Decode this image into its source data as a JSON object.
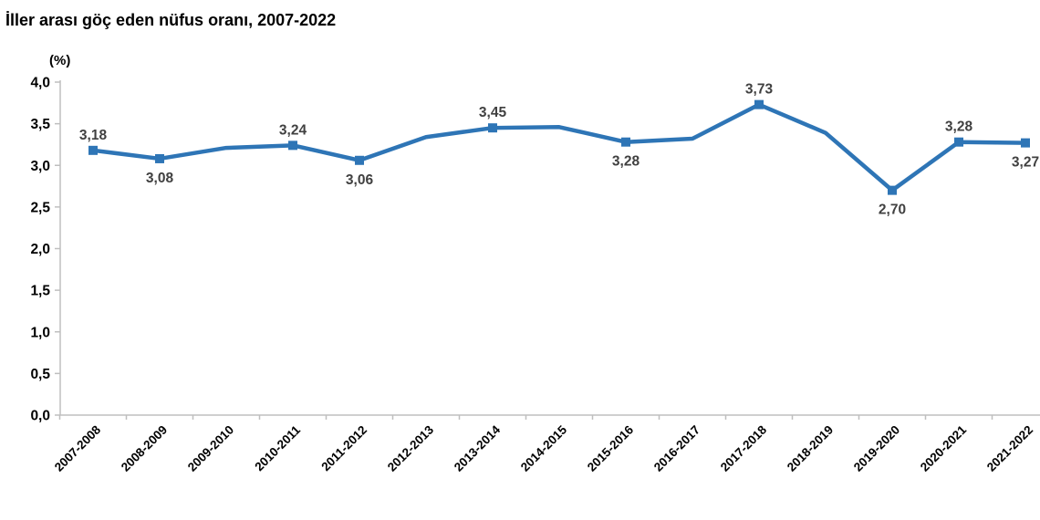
{
  "title": "İller arası göç eden nüfus oranı, 2007-2022",
  "colors": {
    "line": "#2E75B6",
    "marker": "#2E75B6",
    "data_label": "#404040",
    "axis": "#BFBFBF",
    "tick_label": "#000000",
    "title": "#000000"
  },
  "chart_data": {
    "type": "line",
    "title": "İller arası göç eden nüfus oranı, 2007-2022",
    "xlabel": "",
    "ylabel": "(%)",
    "ylim": [
      0,
      4
    ],
    "grid": false,
    "legend": null,
    "categories": [
      "2007-2008",
      "2008-2009",
      "2009-2010",
      "2010-2011",
      "2011-2012",
      "2012-2013",
      "2013-2014",
      "2014-2015",
      "2015-2016",
      "2016-2017",
      "2017-2018",
      "2018-2019",
      "2019-2020",
      "2020-2021",
      "2021-2022"
    ],
    "values": [
      3.18,
      3.08,
      3.21,
      3.24,
      3.06,
      3.34,
      3.45,
      3.46,
      3.28,
      3.32,
      3.73,
      3.39,
      2.7,
      3.28,
      3.27
    ],
    "labeled_points": [
      {
        "index": 0,
        "label": "3,18",
        "placement": "above"
      },
      {
        "index": 1,
        "label": "3,08",
        "placement": "below"
      },
      {
        "index": 3,
        "label": "3,24",
        "placement": "above"
      },
      {
        "index": 4,
        "label": "3,06",
        "placement": "below"
      },
      {
        "index": 6,
        "label": "3,45",
        "placement": "above"
      },
      {
        "index": 8,
        "label": "3,28",
        "placement": "below"
      },
      {
        "index": 10,
        "label": "3,73",
        "placement": "above"
      },
      {
        "index": 12,
        "label": "2,70",
        "placement": "below"
      },
      {
        "index": 13,
        "label": "3,28",
        "placement": "above"
      },
      {
        "index": 14,
        "label": "3,27",
        "placement": "below"
      }
    ],
    "y_ticks": [
      "0,0",
      "0,5",
      "1,0",
      "1,5",
      "2,0",
      "2,5",
      "3,0",
      "3,5",
      "4,0"
    ]
  }
}
